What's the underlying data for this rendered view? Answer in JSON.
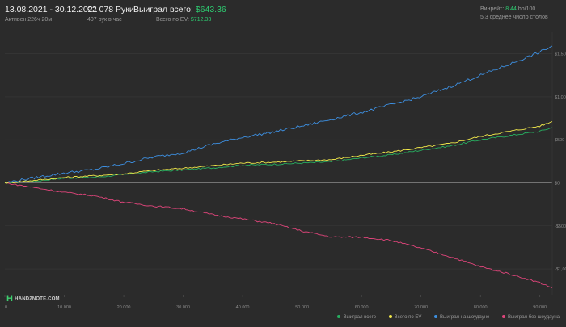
{
  "header": {
    "date_range": "13.08.2021 - 30.12.2021",
    "active": "Активен 226ч 20м",
    "hands": "92 078 Руки",
    "hands_per_hour": "407 рук в час",
    "won_label": "Выиграл всего:",
    "won_value": "$643.36",
    "ev_label": "Всего по EV:",
    "ev_value": "$712.33",
    "winrate_label": "Винрейт:",
    "winrate_value": "8.44",
    "winrate_unit": "bb/100",
    "tables": "5.3 среднее число столов"
  },
  "logo": {
    "text": "HAND2NOTE.COM",
    "icon": "h-letter-logo"
  },
  "colors": {
    "background": "#2b2b2b",
    "total": "#27ae60",
    "ev": "#f1e84a",
    "showdown": "#3d8fe0",
    "non_showdown": "#e0457b"
  },
  "legend": {
    "items": [
      {
        "label": "Выиграл всего",
        "color": "#27ae60"
      },
      {
        "label": "Всего по EV",
        "color": "#f1e84a"
      },
      {
        "label": "Выиграл на шоудауне",
        "color": "#3d8fe0"
      },
      {
        "label": "Выиграл без шоудауна",
        "color": "#e0457b"
      }
    ]
  },
  "chart_data": {
    "type": "line",
    "xlim": [
      0,
      92078
    ],
    "ylim": [
      -1300,
      1750
    ],
    "x_ticks": [
      0,
      10000,
      20000,
      30000,
      40000,
      50000,
      60000,
      70000,
      80000,
      90000
    ],
    "x_tick_labels": [
      "0",
      "10 000",
      "20 000",
      "30 000",
      "40 000",
      "50 000",
      "60 000",
      "70 000",
      "80 000",
      "90 000"
    ],
    "y_ticks": [
      -1000,
      -500,
      0,
      500,
      1000,
      1500
    ],
    "y_tick_labels": [
      "-$1,000",
      "-$500",
      "$0",
      "$500",
      "$1,000",
      "$1,500"
    ],
    "grid": true,
    "legend_position": "bottom-right",
    "x": [
      0,
      5000,
      10000,
      15000,
      20000,
      25000,
      30000,
      35000,
      40000,
      45000,
      50000,
      55000,
      60000,
      65000,
      70000,
      75000,
      80000,
      85000,
      90000,
      92078
    ],
    "series": [
      {
        "name": "Выиграл всего",
        "color": "#27ae60",
        "values": [
          0,
          20,
          55,
          65,
          95,
          130,
          150,
          175,
          205,
          215,
          230,
          245,
          290,
          325,
          380,
          430,
          500,
          550,
          600,
          643
        ]
      },
      {
        "name": "Всего по EV",
        "color": "#f1e84a",
        "values": [
          0,
          28,
          62,
          82,
          105,
          145,
          170,
          200,
          230,
          240,
          255,
          270,
          320,
          360,
          410,
          460,
          540,
          600,
          660,
          712
        ]
      },
      {
        "name": "Выиграл на шоудауне",
        "color": "#3d8fe0",
        "values": [
          0,
          60,
          115,
          155,
          225,
          300,
          350,
          450,
          530,
          590,
          660,
          740,
          820,
          910,
          1000,
          1120,
          1250,
          1380,
          1520,
          1590
        ]
      },
      {
        "name": "Выиграл без шоудауна",
        "color": "#e0457b",
        "values": [
          0,
          -55,
          -110,
          -150,
          -225,
          -270,
          -300,
          -370,
          -420,
          -470,
          -560,
          -630,
          -630,
          -670,
          -760,
          -860,
          -975,
          -1060,
          -1160,
          -1220
        ]
      }
    ]
  }
}
